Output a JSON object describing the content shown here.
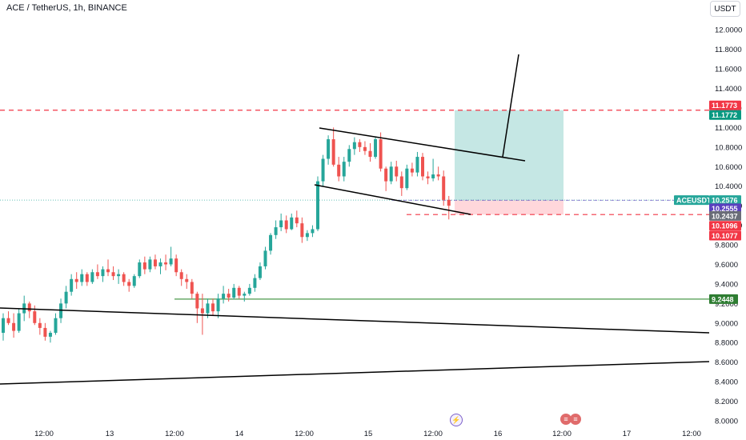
{
  "header": {
    "symbol_title": "ACE / TetherUS, 1h, BINANCE",
    "currency_button": "USDT"
  },
  "chart_data": {
    "type": "candlestick",
    "symbol": "ACEUSDT",
    "ylim": [
      8.0,
      12.1
    ],
    "y_ticks": [
      "12.0000",
      "11.8000",
      "11.6000",
      "11.4000",
      "11.2000",
      "11.0000",
      "10.8000",
      "10.6000",
      "10.4000",
      "10.2000",
      "10.0000",
      "9.8000",
      "9.6000",
      "9.4000",
      "9.2000",
      "9.0000",
      "8.8000",
      "8.6000",
      "8.4000",
      "8.2000",
      "8.0000"
    ],
    "x_ticks": [
      "12:00",
      "13",
      "12:00",
      "14",
      "12:00",
      "15",
      "12:00",
      "16",
      "12:00",
      "17",
      "12:00"
    ],
    "price_labels": [
      {
        "text": "11.1773",
        "value": 11.1773,
        "color": "#f23645"
      },
      {
        "text": "11.1772",
        "value": 11.1772,
        "color": "#089981"
      },
      {
        "text": "ACEUSDT",
        "value": 10.2576,
        "color": "#26a69a"
      },
      {
        "text": "10.2576",
        "value": 10.2576,
        "color": "#26a69a"
      },
      {
        "text": "10.2555",
        "value": 10.2555,
        "color": "#5b3fbf"
      },
      {
        "text": "10.2437",
        "value": 10.2437,
        "color": "#6a6d78"
      },
      {
        "text": "10.1096",
        "value": 10.1096,
        "color": "#f23645"
      },
      {
        "text": "10.1077",
        "value": 10.1077,
        "color": "#f23645"
      },
      {
        "text": "9.2448",
        "value": 9.2448,
        "color": "#2e7d32"
      }
    ],
    "horizontal_lines": [
      {
        "value": 11.1773,
        "style": "dashed",
        "color": "#f23645"
      },
      {
        "value": 10.1096,
        "style": "dashed",
        "color": "#f23645"
      },
      {
        "value": 9.2448,
        "style": "solid",
        "color": "#4c9a4c"
      },
      {
        "value": 10.2576,
        "style": "dotted",
        "color": "#26a69a"
      }
    ],
    "colors": {
      "up": "#26a69a",
      "down": "#ef5350",
      "profit_zone": "#b2dfdb",
      "loss_zone": "#ffcdd2",
      "trendline": "#000000"
    },
    "candles": [
      [
        8.9,
        9.1,
        8.82,
        9.05
      ],
      [
        9.05,
        9.12,
        8.98,
        9.0
      ],
      [
        9.0,
        9.1,
        8.85,
        8.92
      ],
      [
        8.92,
        9.15,
        8.9,
        9.1
      ],
      [
        9.1,
        9.28,
        9.02,
        9.2
      ],
      [
        9.2,
        9.22,
        9.05,
        9.12
      ],
      [
        9.12,
        9.18,
        8.98,
        9.0
      ],
      [
        9.0,
        9.05,
        8.88,
        8.95
      ],
      [
        8.95,
        9.0,
        8.82,
        8.86
      ],
      [
        8.86,
        8.92,
        8.8,
        8.9
      ],
      [
        8.9,
        9.1,
        8.88,
        9.05
      ],
      [
        9.05,
        9.25,
        9.0,
        9.2
      ],
      [
        9.2,
        9.38,
        9.15,
        9.32
      ],
      [
        9.32,
        9.5,
        9.28,
        9.45
      ],
      [
        9.45,
        9.52,
        9.35,
        9.42
      ],
      [
        9.42,
        9.55,
        9.38,
        9.5
      ],
      [
        9.5,
        9.52,
        9.38,
        9.42
      ],
      [
        9.42,
        9.55,
        9.4,
        9.52
      ],
      [
        9.52,
        9.6,
        9.45,
        9.48
      ],
      [
        9.48,
        9.58,
        9.42,
        9.55
      ],
      [
        9.55,
        9.65,
        9.48,
        9.52
      ],
      [
        9.52,
        9.58,
        9.44,
        9.48
      ],
      [
        9.48,
        9.55,
        9.4,
        9.5
      ],
      [
        9.5,
        9.52,
        9.38,
        9.42
      ],
      [
        9.42,
        9.45,
        9.32,
        9.38
      ],
      [
        9.38,
        9.5,
        9.36,
        9.48
      ],
      [
        9.48,
        9.65,
        9.46,
        9.62
      ],
      [
        9.62,
        9.68,
        9.5,
        9.55
      ],
      [
        9.55,
        9.68,
        9.52,
        9.65
      ],
      [
        9.65,
        9.7,
        9.55,
        9.58
      ],
      [
        9.58,
        9.66,
        9.5,
        9.62
      ],
      [
        9.62,
        9.7,
        9.54,
        9.6
      ],
      [
        9.6,
        9.78,
        9.58,
        9.66
      ],
      [
        9.66,
        9.7,
        9.48,
        9.52
      ],
      [
        9.52,
        9.55,
        9.38,
        9.45
      ],
      [
        9.45,
        9.5,
        9.35,
        9.42
      ],
      [
        9.42,
        9.45,
        9.25,
        9.3
      ],
      [
        9.3,
        9.32,
        9.0,
        9.15
      ],
      [
        9.15,
        9.3,
        8.88,
        9.1
      ],
      [
        9.1,
        9.25,
        9.05,
        9.2
      ],
      [
        9.2,
        9.25,
        9.08,
        9.12
      ],
      [
        9.12,
        9.3,
        9.05,
        9.25
      ],
      [
        9.25,
        9.38,
        9.2,
        9.3
      ],
      [
        9.3,
        9.35,
        9.22,
        9.26
      ],
      [
        9.26,
        9.4,
        9.24,
        9.36
      ],
      [
        9.36,
        9.38,
        9.25,
        9.28
      ],
      [
        9.28,
        9.32,
        9.22,
        9.3
      ],
      [
        9.3,
        9.4,
        9.28,
        9.36
      ],
      [
        9.36,
        9.5,
        9.32,
        9.46
      ],
      [
        9.46,
        9.62,
        9.44,
        9.58
      ],
      [
        9.58,
        9.78,
        9.55,
        9.74
      ],
      [
        9.74,
        9.92,
        9.7,
        9.9
      ],
      [
        9.9,
        10.05,
        9.86,
        9.98
      ],
      [
        9.98,
        10.12,
        9.94,
        10.05
      ],
      [
        10.05,
        10.1,
        9.92,
        9.96
      ],
      [
        9.96,
        10.12,
        9.95,
        10.08
      ],
      [
        10.08,
        10.15,
        9.98,
        10.02
      ],
      [
        10.02,
        10.08,
        9.82,
        9.88
      ],
      [
        9.88,
        9.95,
        9.84,
        9.92
      ],
      [
        9.92,
        10.0,
        9.88,
        9.96
      ],
      [
        9.96,
        10.5,
        9.94,
        10.45
      ],
      [
        10.45,
        10.72,
        10.4,
        10.68
      ],
      [
        10.68,
        10.92,
        10.62,
        10.88
      ],
      [
        10.88,
        11.0,
        10.6,
        10.62
      ],
      [
        10.62,
        10.7,
        10.45,
        10.5
      ],
      [
        10.5,
        10.7,
        10.45,
        10.65
      ],
      [
        10.65,
        10.82,
        10.6,
        10.78
      ],
      [
        10.78,
        10.9,
        10.72,
        10.85
      ],
      [
        10.85,
        10.88,
        10.75,
        10.8
      ],
      [
        10.8,
        10.86,
        10.72,
        10.76
      ],
      [
        10.76,
        10.84,
        10.65,
        10.7
      ],
      [
        10.7,
        10.9,
        10.68,
        10.88
      ],
      [
        10.88,
        10.95,
        10.55,
        10.58
      ],
      [
        10.58,
        10.6,
        10.35,
        10.45
      ],
      [
        10.45,
        10.65,
        10.42,
        10.6
      ],
      [
        10.6,
        10.66,
        10.45,
        10.5
      ],
      [
        10.5,
        10.55,
        10.3,
        10.38
      ],
      [
        10.38,
        10.62,
        10.36,
        10.58
      ],
      [
        10.58,
        10.64,
        10.5,
        10.54
      ],
      [
        10.54,
        10.75,
        10.5,
        10.7
      ],
      [
        10.7,
        10.74,
        10.46,
        10.5
      ],
      [
        10.5,
        10.55,
        10.42,
        10.48
      ],
      [
        10.48,
        10.68,
        10.45,
        10.52
      ],
      [
        10.52,
        10.6,
        10.46,
        10.5
      ],
      [
        10.5,
        10.56,
        10.2,
        10.26
      ],
      [
        10.26,
        10.3,
        10.06,
        10.2
      ]
    ]
  }
}
